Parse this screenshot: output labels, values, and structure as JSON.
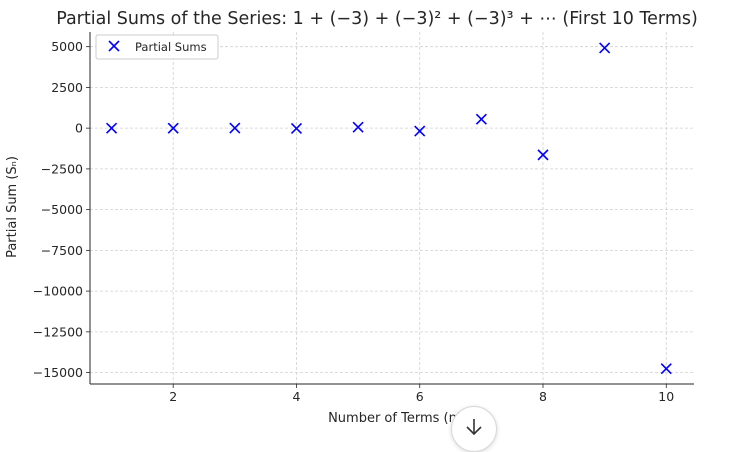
{
  "chart_data": {
    "type": "scatter",
    "title": "Partial Sums of the Series: 1 + (−3) + (−3)² + (−3)³ + ⋯ (First 10 Terms)",
    "xlabel": "Number of Terms (n)",
    "ylabel": "Partial Sum (Sₙ)",
    "x": [
      1,
      2,
      3,
      4,
      5,
      6,
      7,
      8,
      9,
      10
    ],
    "series": [
      {
        "name": "Partial Sums",
        "values": [
          1,
          -2,
          7,
          -20,
          61,
          -182,
          547,
          -1640,
          4921,
          -14762
        ]
      }
    ],
    "xlim": [
      0.65,
      10.45
    ],
    "ylim": [
      -15700,
      5900
    ],
    "xticks": [
      "2",
      "4",
      "6",
      "8",
      "10"
    ],
    "yticks": [
      "5000",
      "2500",
      "0",
      "−2500",
      "−5000",
      "−7500",
      "−10000",
      "−12500",
      "−15000"
    ],
    "grid": true,
    "legend": "top-left",
    "marker": "x",
    "color": "#0000ff"
  },
  "overlay": {
    "scroll_icon": "arrow-down-icon"
  }
}
